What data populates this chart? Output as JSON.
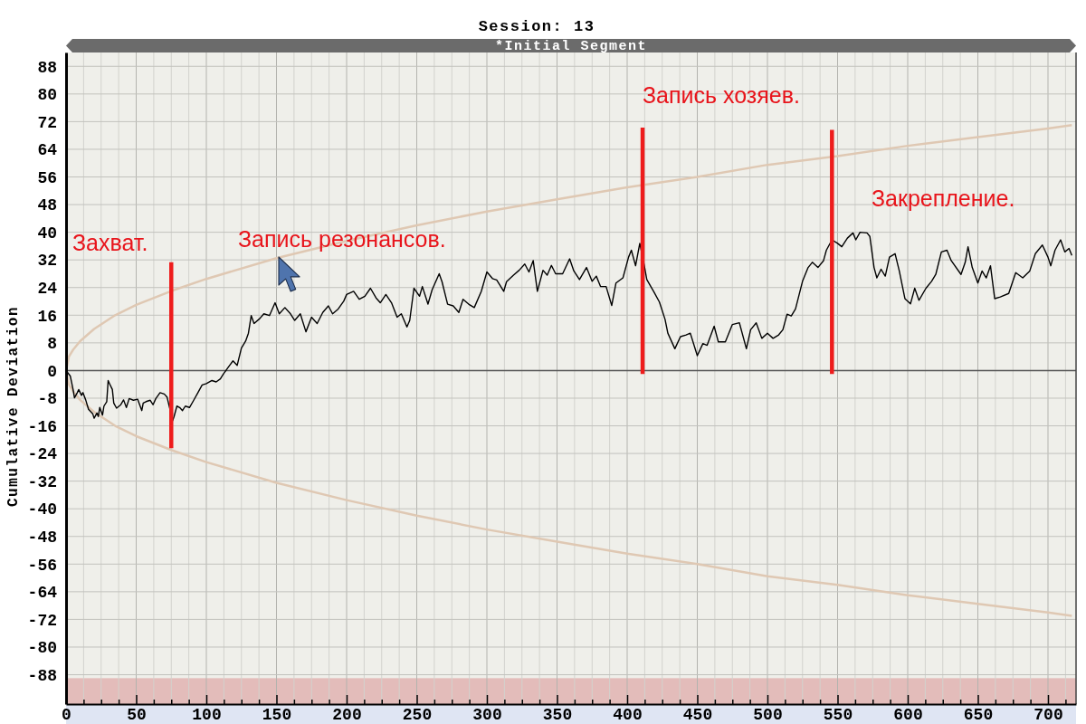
{
  "chart_data": {
    "type": "line",
    "title": "Session: 13",
    "subtitle": "*Initial Segment",
    "ylabel": "Cumulative Deviation",
    "xlim": [
      0,
      720
    ],
    "ylim": [
      -96.5,
      92
    ],
    "xticks": [
      0,
      {
        "value": 12.5,
        "label": null
      },
      {
        "value": 25,
        "label": null
      },
      {
        "value": 37.5,
        "label": null
      },
      50,
      {
        "value": 62.5,
        "label": null
      },
      {
        "value": 75,
        "label": null
      },
      {
        "value": 87.5,
        "label": null
      },
      100,
      {
        "value": 112.5,
        "label": null
      },
      {
        "value": 125,
        "label": null
      },
      {
        "value": 137.5,
        "label": null
      },
      150,
      {
        "value": 162.5,
        "label": null
      },
      {
        "value": 175,
        "label": null
      },
      {
        "value": 187.5,
        "label": null
      },
      200,
      {
        "value": 212.5,
        "label": null
      },
      {
        "value": 225,
        "label": null
      },
      {
        "value": 237.5,
        "label": null
      },
      250,
      {
        "value": 262.5,
        "label": null
      },
      {
        "value": 275,
        "label": null
      },
      {
        "value": 287.5,
        "label": null
      },
      300,
      {
        "value": 312.5,
        "label": null
      },
      {
        "value": 325,
        "label": null
      },
      {
        "value": 337.5,
        "label": null
      },
      350,
      {
        "value": 362.5,
        "label": null
      },
      {
        "value": 375,
        "label": null
      },
      {
        "value": 387.5,
        "label": null
      },
      400,
      {
        "value": 412.5,
        "label": null
      },
      {
        "value": 425,
        "label": null
      },
      {
        "value": 437.5,
        "label": null
      },
      450,
      {
        "value": 462.5,
        "label": null
      },
      {
        "value": 475,
        "label": null
      },
      {
        "value": 487.5,
        "label": null
      },
      500,
      {
        "value": 512.5,
        "label": null
      },
      {
        "value": 525,
        "label": null
      },
      {
        "value": 537.5,
        "label": null
      },
      550,
      {
        "value": 562.5,
        "label": null
      },
      {
        "value": 575,
        "label": null
      },
      {
        "value": 587.5,
        "label": null
      },
      600,
      {
        "value": 612.5,
        "label": null
      },
      {
        "value": 625,
        "label": null
      },
      {
        "value": 637.5,
        "label": null
      },
      650,
      {
        "value": 662.5,
        "label": null
      },
      {
        "value": 675,
        "label": null
      },
      {
        "value": 687.5,
        "label": null
      },
      700,
      {
        "value": 712.5,
        "label": null
      }
    ],
    "yticks": [
      -88,
      -80,
      -72,
      -64,
      -56,
      -48,
      -40,
      -32,
      -24,
      -16,
      -8,
      0,
      8,
      16,
      24,
      32,
      40,
      48,
      56,
      64,
      72,
      80,
      88
    ],
    "grid": true,
    "ref_lines": [
      {
        "axis": "y",
        "value": 0,
        "color": "#555555"
      }
    ],
    "bands": [
      {
        "axis": "y",
        "from": -96.5,
        "to": -89,
        "color": "#e3bcba"
      }
    ],
    "series": [
      {
        "color": "#dfc8b3",
        "x": [
          0,
          2,
          5,
          10,
          20,
          35,
          50,
          75,
          100,
          150,
          200,
          250,
          300,
          350,
          400,
          450,
          500,
          550,
          600,
          650,
          700,
          717
        ],
        "values": [
          0,
          4,
          6,
          8.5,
          12,
          16,
          19,
          23,
          26.5,
          32.5,
          37.5,
          42,
          46,
          49.5,
          53,
          56,
          59.5,
          62,
          65,
          67.5,
          70,
          71
        ]
      },
      {
        "color": "#dfc8b3",
        "x": [
          0,
          2,
          5,
          10,
          20,
          35,
          50,
          75,
          100,
          150,
          200,
          250,
          300,
          350,
          400,
          450,
          500,
          550,
          600,
          650,
          700,
          717
        ],
        "values": [
          0,
          -4,
          -6,
          -8.5,
          -12,
          -16,
          -19,
          -23,
          -26.5,
          -32.5,
          -37.5,
          -42,
          -46,
          -49.5,
          -53,
          -56,
          -59.5,
          -62,
          -65,
          -67.5,
          -70,
          -71
        ]
      },
      {
        "color": "#000000",
        "x": [
          0,
          3,
          5,
          6,
          8,
          9,
          11,
          12,
          14,
          16,
          19,
          20,
          22,
          23,
          24,
          26,
          27,
          29,
          30,
          31,
          33,
          34,
          36,
          39,
          41,
          43,
          45,
          48,
          51,
          54,
          55,
          57,
          60,
          62,
          64,
          67,
          70,
          72,
          73,
          76,
          77,
          79,
          81,
          83,
          85,
          88,
          91,
          94,
          97,
          100,
          104,
          107,
          110,
          112,
          115,
          119,
          122,
          125,
          128,
          130,
          132,
          134,
          138,
          141,
          145,
          149,
          152,
          156,
          160,
          163,
          167,
          171,
          175,
          179,
          183,
          187,
          190,
          194,
          198,
          200,
          205,
          209,
          213,
          217,
          221,
          224,
          228,
          232,
          236,
          239,
          243,
          245,
          248,
          252,
          254,
          258,
          261,
          266,
          268,
          272,
          276,
          280,
          283,
          287,
          291,
          296,
          300,
          304,
          307,
          312,
          314,
          319,
          323,
          327,
          330,
          333,
          336,
          340,
          343,
          346,
          349,
          354,
          359,
          362,
          366,
          371,
          375,
          378,
          381,
          385,
          389,
          392,
          397,
          401,
          403,
          406,
          409,
          412,
          414,
          419,
          423,
          427,
          429,
          434,
          438,
          442,
          445,
          450,
          454,
          457,
          462,
          465,
          470,
          475,
          480,
          485,
          488,
          492,
          496,
          500,
          504,
          508,
          511,
          514,
          517,
          520,
          525,
          529,
          532,
          536,
          540,
          542,
          546,
          550,
          553,
          557,
          561,
          563,
          566,
          571,
          573,
          576,
          578,
          581,
          584,
          587,
          591,
          594,
          598,
          602,
          605,
          608,
          613,
          617,
          620,
          624,
          628,
          631,
          638,
          641,
          643,
          646,
          650,
          653,
          656,
          659,
          662,
          666,
          672,
          677,
          682,
          687,
          691,
          696,
          700,
          702,
          705,
          709,
          712,
          715,
          717
        ],
        "values": [
          0,
          -1.6,
          -5.5,
          -7.9,
          -6.4,
          -5.5,
          -7.2,
          -6.4,
          -8.5,
          -11.2,
          -12.5,
          -13.8,
          -12.3,
          -13.3,
          -10.7,
          -12.9,
          -10.3,
          -9.0,
          -2.9,
          -3.8,
          -5.5,
          -9.4,
          -10.9,
          -9.9,
          -8.5,
          -10.7,
          -8.1,
          -8.6,
          -8.3,
          -11.6,
          -9.4,
          -9.0,
          -8.6,
          -9.9,
          -8.1,
          -6.4,
          -6.8,
          -7.7,
          -9.4,
          -14.5,
          -13.3,
          -10.3,
          -10.7,
          -11.6,
          -10.3,
          -10.7,
          -8.6,
          -6.4,
          -4.2,
          -3.8,
          -2.9,
          -3.3,
          -2.4,
          -1.1,
          0.6,
          2.8,
          1.5,
          6.5,
          8.5,
          10.8,
          15.9,
          13.6,
          15.0,
          16.4,
          15.9,
          19.6,
          16.4,
          18.2,
          16.4,
          14.5,
          16.4,
          11.2,
          15.4,
          13.6,
          16.8,
          18.7,
          16.4,
          17.8,
          20.1,
          22.0,
          22.9,
          20.6,
          21.5,
          23.8,
          21.0,
          19.6,
          22.0,
          19.6,
          15.4,
          16.4,
          12.6,
          14.5,
          23.8,
          21.5,
          24.3,
          19.2,
          23.4,
          28.0,
          25.7,
          19.2,
          18.7,
          16.8,
          20.6,
          19.2,
          18.2,
          22.9,
          28.5,
          26.6,
          26.2,
          22.9,
          25.7,
          27.6,
          29.0,
          30.8,
          28.5,
          31.8,
          22.9,
          29.0,
          27.6,
          30.4,
          28.0,
          28.0,
          32.3,
          28.8,
          26.3,
          29.8,
          25.8,
          27.3,
          24.3,
          24.3,
          18.8,
          25.3,
          26.8,
          32.8,
          34.8,
          30.3,
          36.8,
          30.8,
          26.3,
          22.8,
          19.8,
          14.8,
          10.8,
          6.3,
          9.8,
          10.3,
          10.8,
          4.3,
          7.8,
          7.3,
          12.8,
          8.3,
          8.3,
          13.3,
          13.8,
          6.3,
          11.8,
          13.8,
          9.3,
          10.8,
          9.3,
          10.3,
          11.8,
          16.3,
          15.8,
          17.8,
          25.8,
          29.8,
          31.3,
          29.8,
          31.8,
          34.8,
          37.8,
          36.8,
          35.8,
          38.3,
          39.8,
          37.8,
          40.0,
          39.8,
          38.8,
          29.8,
          26.8,
          29.3,
          27.3,
          32.8,
          33.8,
          28.8,
          20.8,
          19.3,
          23.8,
          20.3,
          23.8,
          25.8,
          27.8,
          34.3,
          34.8,
          31.8,
          27.8,
          31.3,
          35.8,
          29.8,
          25.3,
          28.8,
          26.8,
          30.3,
          20.8,
          21.3,
          22.3,
          28.3,
          26.8,
          28.8,
          33.8,
          36.3,
          32.8,
          30.3,
          34.8,
          37.8,
          34.3,
          35.3,
          33.3
        ]
      },
      {
        "color": "#ee1c1c",
        "x": [
          75,
          75
        ],
        "values": [
          31.3,
          -22.5
        ]
      },
      {
        "color": "#ee1c1c",
        "x": [
          411,
          411
        ],
        "values": [
          70.3,
          -1
        ]
      },
      {
        "color": "#ee1c1c",
        "x": [
          546,
          546
        ],
        "values": [
          69.6,
          -1
        ]
      }
    ],
    "annotations": [
      "Захват.",
      "Запись резонансов.",
      "Запись хозяев.",
      "Закрепление."
    ]
  }
}
